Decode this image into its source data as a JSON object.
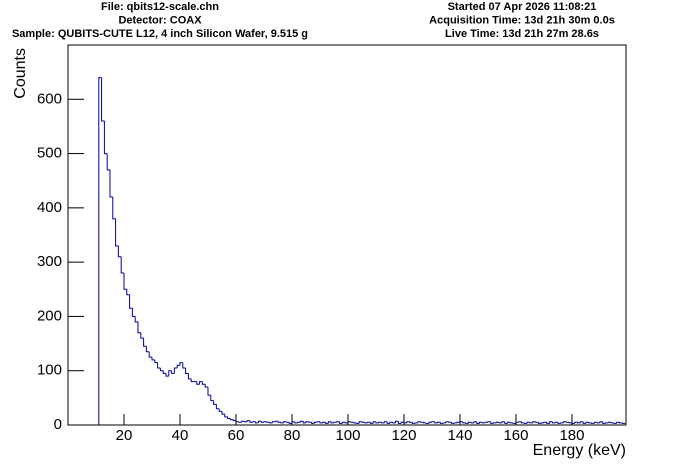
{
  "chart_data": {
    "type": "histogram",
    "header_left": [
      "File: qbits12-scale.chn",
      "Detector: COAX",
      "Sample: QUBITS-CUTE L12, 4 inch Silicon Wafer, 9.515 g"
    ],
    "header_right": [
      "Started 07 Apr 2026 11:08:21",
      "Acquisition Time: 13d 21h 30m 0.0s",
      "Live Time: 13d 21h 27m 28.6s"
    ],
    "x_label": "Energy (keV)",
    "y_label": "Counts",
    "color": "#000099",
    "xlim": [
      0,
      199.3
    ],
    "ylim": [
      0,
      700
    ],
    "xticks": [
      20,
      40,
      60,
      80,
      100,
      120,
      140,
      160,
      180
    ],
    "yticks": [
      0,
      100,
      200,
      300,
      400,
      500,
      600
    ],
    "bins": [
      11,
      12,
      13,
      14,
      15,
      16,
      17,
      18,
      19,
      20,
      21,
      22,
      23,
      24,
      25,
      26,
      27,
      28,
      29,
      30,
      31,
      32,
      33,
      34,
      35,
      36,
      37,
      38,
      39,
      40,
      41,
      42,
      43,
      44,
      45,
      46,
      47,
      48,
      49,
      50,
      51,
      52,
      53,
      54,
      55,
      56,
      57,
      58,
      59,
      60,
      61,
      62,
      63,
      64,
      65,
      66,
      67,
      68,
      69,
      70,
      71,
      72,
      73,
      74,
      75,
      76,
      77,
      78,
      79,
      80,
      81,
      82,
      83,
      84,
      85,
      86,
      87,
      88,
      89,
      90,
      91,
      92,
      93,
      94,
      95,
      96,
      97,
      98,
      99,
      100,
      101,
      102,
      103,
      104,
      105,
      106,
      107,
      108,
      109,
      110,
      111,
      112,
      113,
      114,
      115,
      116,
      117,
      118,
      119,
      120,
      121,
      122,
      123,
      124,
      125,
      126,
      127,
      128,
      129,
      130,
      131,
      132,
      133,
      134,
      135,
      136,
      137,
      138,
      139,
      140,
      141,
      142,
      143,
      144,
      145,
      146,
      147,
      148,
      149,
      150,
      151,
      152,
      153,
      154,
      155,
      156,
      157,
      158,
      159,
      160,
      161,
      162,
      163,
      164,
      165,
      166,
      167,
      168,
      169,
      170,
      171,
      172,
      173,
      174,
      175,
      176,
      177,
      178,
      179,
      180,
      181,
      182,
      183,
      184,
      185,
      186,
      187,
      188,
      189,
      190,
      191,
      192,
      193,
      194,
      195,
      196,
      197,
      198,
      199
    ],
    "values": [
      640,
      560,
      500,
      470,
      420,
      380,
      330,
      310,
      280,
      250,
      240,
      215,
      200,
      190,
      170,
      160,
      145,
      135,
      125,
      120,
      115,
      105,
      100,
      95,
      90,
      100,
      95,
      105,
      110,
      115,
      105,
      95,
      85,
      80,
      80,
      75,
      80,
      75,
      70,
      55,
      45,
      38,
      30,
      25,
      20,
      15,
      12,
      10,
      8,
      6,
      5,
      7,
      6,
      8,
      5,
      6,
      4,
      7,
      5,
      6,
      5,
      4,
      6,
      7,
      5,
      4,
      6,
      5,
      3,
      6,
      4,
      5,
      7,
      4,
      6,
      5,
      3,
      5,
      6,
      4,
      5,
      3,
      6,
      4,
      5,
      6,
      3,
      5,
      4,
      6,
      5,
      4,
      3,
      6,
      5,
      4,
      5,
      3,
      6,
      4,
      5,
      4,
      6,
      3,
      5,
      4,
      7,
      3,
      5,
      4,
      6,
      5,
      3,
      4,
      6,
      5,
      4,
      3,
      5,
      6,
      4,
      5,
      3,
      4,
      6,
      5,
      3,
      4,
      5,
      6,
      4,
      3,
      5,
      4,
      6,
      3,
      5,
      4,
      5,
      6,
      3,
      4,
      5,
      4,
      6,
      3,
      5,
      4,
      3,
      5,
      6,
      4,
      3,
      5,
      4,
      6,
      5,
      3,
      4,
      5,
      3,
      6,
      4,
      5,
      3,
      4,
      6,
      5,
      4,
      3,
      5,
      4,
      6,
      3,
      5,
      4,
      3,
      5,
      4,
      6,
      3,
      4,
      5,
      4,
      3,
      5,
      4,
      3
    ]
  }
}
